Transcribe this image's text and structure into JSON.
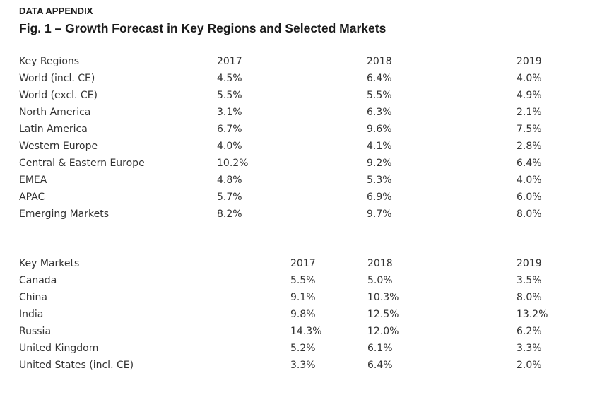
{
  "header": {
    "kicker": "DATA APPENDIX",
    "title": "Fig. 1 – Growth Forecast in Key Regions and Selected Markets"
  },
  "regions": {
    "header": {
      "label": "Key Regions",
      "y2017": "2017",
      "y2018": "2018",
      "y2019": "2019"
    },
    "rows": [
      {
        "label": "World (incl. CE)",
        "y2017": "4.5%",
        "y2018": "6.4%",
        "y2019": "4.0%"
      },
      {
        "label": "World (excl. CE)",
        "y2017": "5.5%",
        "y2018": "5.5%",
        "y2019": "4.9%"
      },
      {
        "label": "North America",
        "y2017": "3.1%",
        "y2018": "6.3%",
        "y2019": "2.1%"
      },
      {
        "label": "Latin America",
        "y2017": "6.7%",
        "y2018": "9.6%",
        "y2019": "7.5%"
      },
      {
        "label": "Western Europe",
        "y2017": "4.0%",
        "y2018": "4.1%",
        "y2019": "2.8%"
      },
      {
        "label": "Central & Eastern Europe",
        "y2017": "10.2%",
        "y2018": "9.2%",
        "y2019": "6.4%"
      },
      {
        "label": "EMEA",
        "y2017": "4.8%",
        "y2018": "5.3%",
        "y2019": "4.0%"
      },
      {
        "label": "APAC",
        "y2017": "5.7%",
        "y2018": "6.9%",
        "y2019": "6.0%"
      },
      {
        "label": "Emerging Markets",
        "y2017": "8.2%",
        "y2018": "9.7%",
        "y2019": "8.0%"
      }
    ]
  },
  "markets": {
    "header": {
      "label": "Key Markets",
      "y2017": "2017",
      "y2018": "2018",
      "y2019": "2019"
    },
    "rows": [
      {
        "label": "Canada",
        "y2017": "5.5%",
        "y2018": "5.0%",
        "y2019": "3.5%"
      },
      {
        "label": "China",
        "y2017": "9.1%",
        "y2018": "10.3%",
        "y2019": "8.0%"
      },
      {
        "label": "India",
        "y2017": "9.8%",
        "y2018": "12.5%",
        "y2019": "13.2%"
      },
      {
        "label": "Russia",
        "y2017": "14.3%",
        "y2018": "12.0%",
        "y2019": "6.2%"
      },
      {
        "label": "United Kingdom",
        "y2017": "5.2%",
        "y2018": "6.1%",
        "y2019": "3.3%"
      },
      {
        "label": "United States (incl. CE)",
        "y2017": "3.3%",
        "y2018": "6.4%",
        "y2019": "2.0%"
      }
    ]
  }
}
